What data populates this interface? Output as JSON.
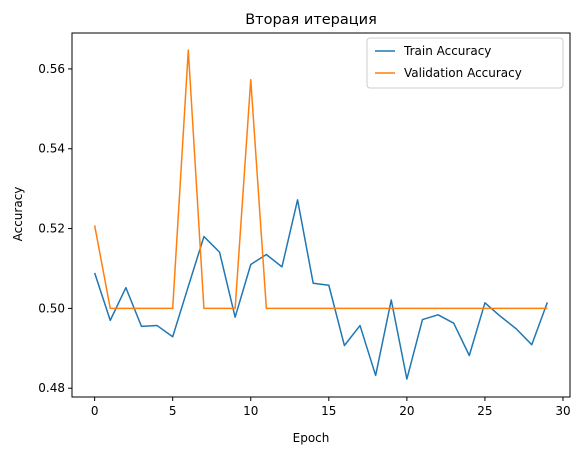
{
  "chart_data": {
    "type": "line",
    "title": "Вторая итерация",
    "xlabel": "Epoch",
    "ylabel": "Accuracy",
    "xlim": [
      -1.45,
      30.45
    ],
    "ylim": [
      0.4778,
      0.569
    ],
    "xticks": [
      0,
      5,
      10,
      15,
      20,
      25,
      30
    ],
    "yticks": [
      0.48,
      0.5,
      0.52,
      0.54,
      0.56
    ],
    "grid": false,
    "legend_position": "top-right",
    "x": [
      0,
      1,
      2,
      3,
      4,
      5,
      6,
      7,
      8,
      9,
      10,
      11,
      12,
      13,
      14,
      15,
      16,
      17,
      18,
      19,
      20,
      21,
      22,
      23,
      24,
      25,
      26,
      27,
      28,
      29
    ],
    "series": [
      {
        "name": "Train Accuracy",
        "color": "#1f77b4",
        "values": [
          0.5089,
          0.497,
          0.5052,
          0.4955,
          0.4957,
          0.4929,
          0.5055,
          0.518,
          0.5141,
          0.4978,
          0.511,
          0.5135,
          0.5104,
          0.5272,
          0.5063,
          0.5058,
          0.4907,
          0.4957,
          0.4832,
          0.5021,
          0.4823,
          0.4972,
          0.4984,
          0.4963,
          0.4882,
          0.5014,
          0.498,
          0.4949,
          0.4909,
          0.5015
        ]
      },
      {
        "name": "Validation Accuracy",
        "color": "#ff7f0e",
        "values": [
          0.5208,
          0.5,
          0.5,
          0.5,
          0.5,
          0.5,
          0.5647,
          0.5,
          0.5,
          0.5,
          0.5573,
          0.5,
          0.5,
          0.5,
          0.5,
          0.5,
          0.5,
          0.5,
          0.5,
          0.5,
          0.5,
          0.5,
          0.5,
          0.5,
          0.5,
          0.5,
          0.5,
          0.5,
          0.5,
          0.5
        ]
      }
    ]
  }
}
